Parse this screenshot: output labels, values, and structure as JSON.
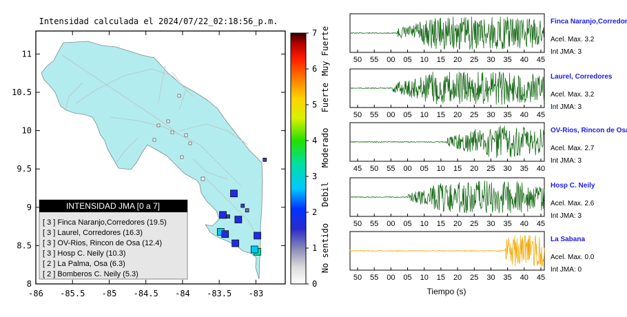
{
  "map": {
    "title": "Intensidad calculada el 2024/07/22_02:18:56_p.m.",
    "xticks": [
      "-86",
      "-85.5",
      "-85",
      "-84.5",
      "-84",
      "-83.5",
      "-83"
    ],
    "yticks": [
      "11",
      "10.5",
      "10",
      "9.5",
      "9",
      "8.5",
      "8"
    ],
    "land_color": "#b3ecee",
    "legend": {
      "title": "INTENSIDAD JMA [0 a 7]",
      "items": [
        "[ 3 ] Finca Naranjo,Corredores (19.5)",
        "[ 3 ] Laurel, Corredores (16.3)",
        "[ 3 ] OV-Rios, Rincon de Osa (12.4)",
        "[ 3 ] Hosp C. Neily (10.3)",
        "[ 2 ] La Palma, Osa (6.3)",
        "[ 2 ] Bomberos C. Neily (5.3)"
      ]
    }
  },
  "colorbar": {
    "ticks": [
      "0",
      "1",
      "2",
      "3",
      "4",
      "5",
      "6",
      "7"
    ],
    "labels": [
      "No sentido",
      "Debil",
      "Moderado",
      "Fuerte",
      "Muy Fuerte"
    ]
  },
  "seismograms": {
    "xlabel": "Tiempo (s)",
    "panels": [
      {
        "name": "Finca Naranjo,Corredores",
        "acel": "Acel. Max. 3.2",
        "int": "Int JMA: 3",
        "ticks": [
          "50",
          "55",
          "00",
          "05",
          "10",
          "15",
          "20",
          "25",
          "30",
          "35",
          "40",
          "45"
        ],
        "color": "#1a6b1a",
        "onset": 0.24
      },
      {
        "name": "Laurel, Corredores",
        "acel": "Acel. Max. 3.2",
        "int": "Int JMA: 3",
        "ticks": [
          "50",
          "55",
          "00",
          "05",
          "10",
          "15",
          "20",
          "25",
          "30",
          "35",
          "40",
          "45"
        ],
        "color": "#1a6b1a",
        "onset": 0.22
      },
      {
        "name": "OV-Rios, Rincon de Osa",
        "acel": "Acel. Max. 2.7",
        "int": "Int JMA: 3",
        "ticks": [
          "45",
          "50",
          "55",
          "00",
          "05",
          "10",
          "15",
          "20",
          "25",
          "30",
          "35",
          "40"
        ],
        "color": "#1a6b1a",
        "onset": 0.5
      },
      {
        "name": "Hosp C. Neily",
        "acel": "Acel. Max. 2.6",
        "int": "Int JMA: 3",
        "ticks": [
          "50",
          "55",
          "00",
          "05",
          "10",
          "15",
          "20",
          "25",
          "30",
          "35",
          "40",
          "45"
        ],
        "color": "#1a6b1a",
        "onset": 0.3
      },
      {
        "name": "La Sabana",
        "acel": "Acel. Max. 0.0",
        "int": "Int JMA: 0",
        "ticks": [
          "50",
          "55",
          "00",
          "05",
          "10",
          "15",
          "20",
          "25",
          "30",
          "35",
          "40",
          "45"
        ],
        "color": "#f5a800",
        "onset": 0.8
      }
    ]
  },
  "chart_data": {
    "type": "scatter",
    "title": "Intensidad calculada el 2024/07/22_02:18:56_p.m.",
    "xlim": [
      -86,
      -82.6
    ],
    "ylim": [
      8,
      11.3
    ],
    "points": [
      {
        "lon": -83.3,
        "lat": 9.18,
        "int": 2
      },
      {
        "lon": -83.24,
        "lat": 8.84,
        "int": 2
      },
      {
        "lon": -83.28,
        "lat": 8.53,
        "int": 2
      },
      {
        "lon": -83.48,
        "lat": 8.68,
        "int": 3
      },
      {
        "lon": -83.42,
        "lat": 8.65,
        "int": 2
      },
      {
        "lon": -82.98,
        "lat": 8.63,
        "int": 2.5
      },
      {
        "lon": -82.98,
        "lat": 8.42,
        "int": 3.5
      },
      {
        "lon": -83.02,
        "lat": 8.45,
        "int": 3
      },
      {
        "lon": -83.45,
        "lat": 8.9,
        "int": 2
      },
      {
        "lon": -83.38,
        "lat": 8.88,
        "int": 1.5
      },
      {
        "lon": -83.18,
        "lat": 9.02,
        "int": 1.5
      },
      {
        "lon": -83.12,
        "lat": 8.96,
        "int": 1.2
      },
      {
        "lon": -82.88,
        "lat": 9.62,
        "int": 1.5
      }
    ]
  }
}
